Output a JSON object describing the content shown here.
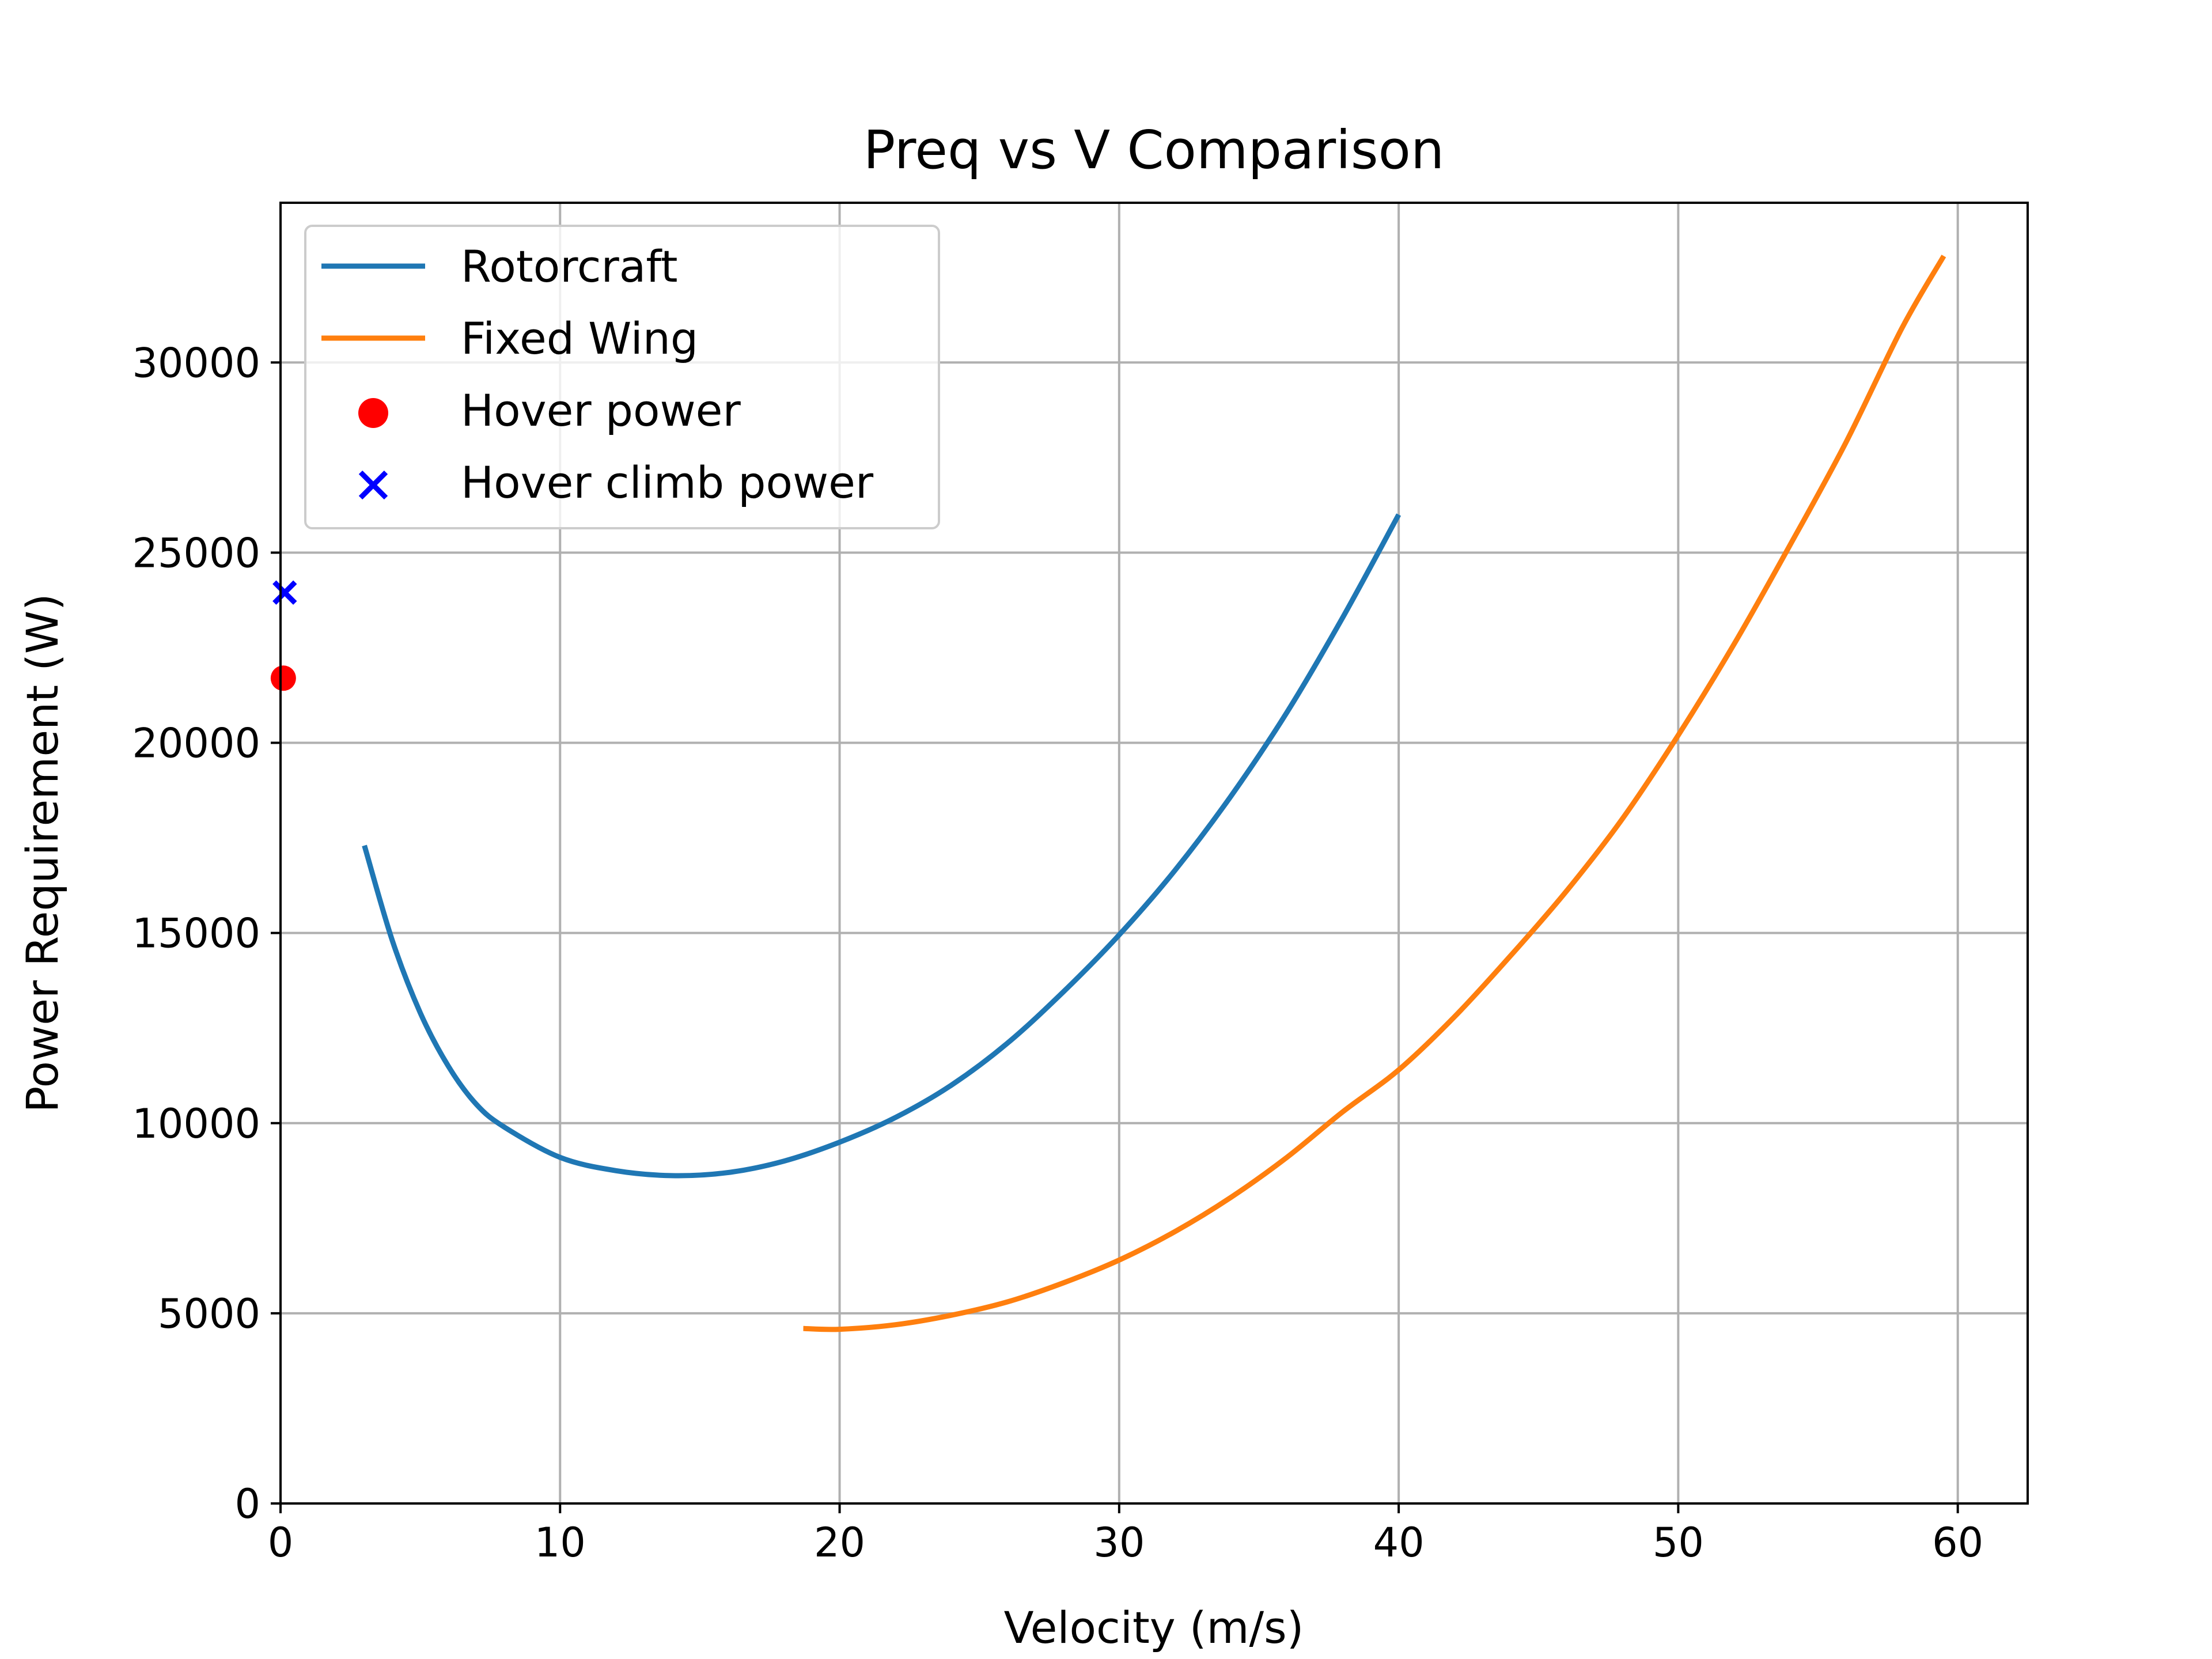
{
  "chart_data": {
    "type": "line",
    "title": "Preq vs V Comparison",
    "xlabel": "Velocity (m/s)",
    "ylabel": "Power Requirement (W)",
    "xlim": [
      0,
      62.5
    ],
    "ylim": [
      0,
      34200
    ],
    "xticks": [
      0,
      10,
      20,
      30,
      40,
      50,
      60
    ],
    "yticks": [
      0,
      5000,
      10000,
      15000,
      20000,
      25000,
      30000
    ],
    "x_tick_labels": [
      "0",
      "10",
      "20",
      "30",
      "40",
      "50",
      "60"
    ],
    "y_tick_labels": [
      "0",
      "5000",
      "10000",
      "15000",
      "20000",
      "25000",
      "30000"
    ],
    "grid": true,
    "legend_position": "top-left",
    "series": [
      {
        "name": "Rotorcraft",
        "kind": "line",
        "color": "#1f77b4",
        "x": [
          3,
          4,
          5,
          6,
          7,
          8,
          10,
          12,
          14,
          16,
          18,
          20,
          22,
          24,
          26,
          28,
          30,
          32,
          34,
          36,
          38,
          40
        ],
        "y": [
          17300,
          14800,
          12900,
          11500,
          10500,
          9900,
          9100,
          8750,
          8620,
          8700,
          9000,
          9500,
          10150,
          11000,
          12100,
          13450,
          14950,
          16650,
          18600,
          20800,
          23300,
          26000
        ]
      },
      {
        "name": "Fixed Wing",
        "kind": "line",
        "color": "#ff7f0e",
        "x": [
          18.7,
          20,
          22,
          24,
          26,
          28,
          30,
          32,
          34,
          36,
          38,
          40,
          42,
          44,
          46,
          48,
          50,
          52,
          54,
          56,
          58,
          59.5
        ],
        "y": [
          4600,
          4580,
          4700,
          4950,
          5300,
          5800,
          6400,
          7150,
          8050,
          9100,
          10300,
          11400,
          12800,
          14400,
          16100,
          18000,
          20200,
          22600,
          25200,
          27900,
          30900,
          32800
        ]
      },
      {
        "name": "Hover power",
        "kind": "scatter",
        "marker": "circle",
        "color": "#ff0000",
        "x": [
          0.1
        ],
        "y": [
          21700
        ]
      },
      {
        "name": "Hover climb power",
        "kind": "scatter",
        "marker": "x",
        "color": "#0000ff",
        "x": [
          0.15
        ],
        "y": [
          23950
        ]
      }
    ]
  }
}
